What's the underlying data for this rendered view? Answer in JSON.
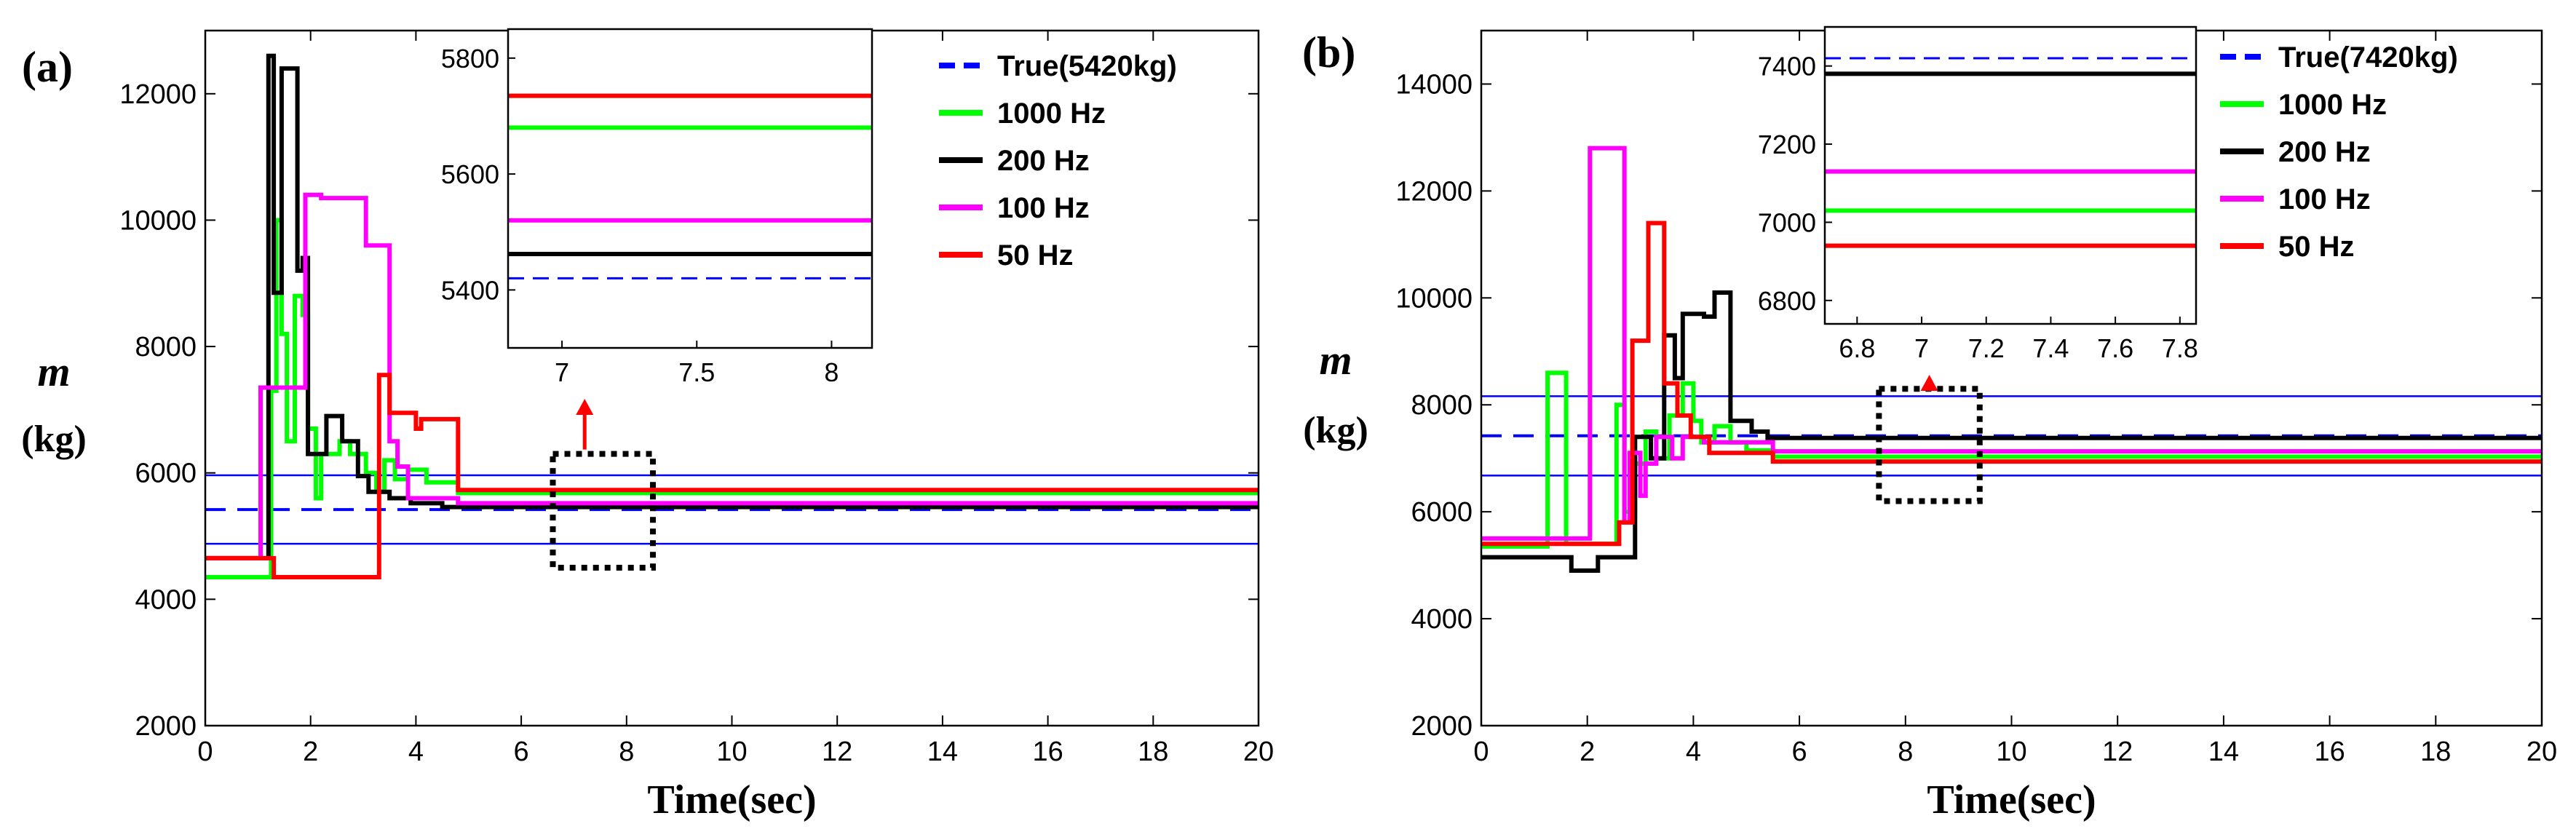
{
  "chart_data": [
    {
      "type": "line",
      "panel_label": "(a)",
      "title": "",
      "xlabel": "Time(sec)",
      "ylabel_symbol": "m",
      "ylabel_unit": "(kg)",
      "xlim": [
        0,
        20
      ],
      "ylim": [
        2000,
        13000
      ],
      "xticks": [
        0,
        2,
        4,
        6,
        8,
        10,
        12,
        14,
        16,
        18,
        20
      ],
      "yticks": [
        2000,
        4000,
        6000,
        8000,
        10000,
        12000
      ],
      "legend_position": "top-right",
      "reference_lines": {
        "true_value": 5420,
        "band_upper": 5962,
        "band_lower": 4878
      },
      "series": [
        {
          "name": "True(5420kg)",
          "color": "#0000ff",
          "dashed": true,
          "x": [
            0,
            20
          ],
          "y": [
            5420,
            5420
          ]
        },
        {
          "name": "1000 Hz",
          "color": "#00ff00",
          "x": [
            0,
            1.25,
            1.25,
            1.35,
            1.35,
            1.45,
            1.45,
            1.55,
            1.55,
            1.7,
            1.7,
            1.85,
            1.85,
            1.95,
            1.95,
            2.1,
            2.1,
            2.2,
            2.2,
            2.55,
            2.55,
            2.75,
            2.75,
            3.05,
            3.05,
            3.25,
            3.25,
            3.4,
            3.4,
            3.6,
            3.6,
            3.85,
            3.85,
            4.2,
            4.2,
            4.8,
            4.8,
            20
          ],
          "y": [
            4350,
            4350,
            7300,
            7300,
            10000,
            10000,
            8200,
            8200,
            6500,
            6500,
            8800,
            8800,
            8500,
            8500,
            6700,
            6700,
            5600,
            5600,
            6300,
            6300,
            6500,
            6500,
            6300,
            6300,
            6000,
            6000,
            5700,
            5700,
            6200,
            6200,
            5900,
            5900,
            6050,
            6050,
            5850,
            5850,
            5680,
            5680
          ]
        },
        {
          "name": "200 Hz",
          "color": "#000000",
          "x": [
            0,
            1.2,
            1.2,
            1.3,
            1.3,
            1.45,
            1.45,
            1.75,
            1.75,
            1.85,
            1.85,
            1.95,
            1.95,
            2.3,
            2.3,
            2.6,
            2.6,
            2.9,
            2.9,
            3.1,
            3.1,
            3.5,
            3.5,
            3.9,
            3.9,
            4.5,
            4.5,
            4.9,
            4.9,
            20
          ],
          "y": [
            4650,
            4650,
            12600,
            12600,
            8850,
            8850,
            12400,
            12400,
            9200,
            9200,
            9400,
            9400,
            6300,
            6300,
            6900,
            6900,
            6500,
            6500,
            5950,
            5950,
            5700,
            5700,
            5600,
            5600,
            5520,
            5520,
            5460,
            5460,
            5460,
            5460
          ]
        },
        {
          "name": "100 Hz",
          "color": "#ff00ff",
          "x": [
            0,
            1.05,
            1.05,
            1.9,
            1.9,
            2.2,
            2.2,
            2.55,
            2.55,
            3.05,
            3.05,
            3.5,
            3.5,
            3.65,
            3.65,
            3.85,
            3.85,
            4.8,
            4.8,
            20
          ],
          "y": [
            4650,
            4650,
            7350,
            7350,
            10400,
            10400,
            10350,
            10350,
            10350,
            10350,
            9600,
            9600,
            6500,
            6500,
            6100,
            6100,
            5600,
            5600,
            5520,
            5520
          ]
        },
        {
          "name": "50 Hz",
          "color": "#ff0000",
          "x": [
            0,
            1.3,
            1.3,
            3.3,
            3.3,
            3.5,
            3.5,
            4.0,
            4.0,
            4.1,
            4.1,
            4.8,
            4.8,
            20
          ],
          "y": [
            4650,
            4650,
            4350,
            4350,
            7550,
            7550,
            6950,
            6950,
            6700,
            6700,
            6850,
            6850,
            5730,
            5730
          ]
        }
      ],
      "inset": {
        "xlim": [
          6.8,
          8.15
        ],
        "ylim": [
          5300,
          5850
        ],
        "xticks": [
          7,
          7.5,
          8
        ],
        "yticks": [
          5400,
          5600,
          5800
        ],
        "xticklabels": [
          "7",
          "7.5",
          "8"
        ],
        "yticklabels": [
          "5400",
          "5600",
          "5800"
        ],
        "lines": [
          {
            "name": "50 Hz",
            "color": "#ff0000",
            "y": 5735
          },
          {
            "name": "1000 Hz",
            "color": "#00ff00",
            "y": 5680
          },
          {
            "name": "100 Hz",
            "color": "#ff00ff",
            "y": 5520
          },
          {
            "name": "200 Hz",
            "color": "#000000",
            "y": 5462
          },
          {
            "name": "True(5420kg)",
            "color": "#0000ff",
            "y": 5420,
            "dashed": true
          }
        ]
      },
      "zoom_box": {
        "x": [
          6.6,
          8.5
        ],
        "y": [
          4500,
          6300
        ]
      }
    },
    {
      "type": "line",
      "panel_label": "(b)",
      "title": "",
      "xlabel": "Time(sec)",
      "ylabel_symbol": "m",
      "ylabel_unit": "(kg)",
      "xlim": [
        0,
        20
      ],
      "ylim": [
        2000,
        15000
      ],
      "xticks": [
        0,
        2,
        4,
        6,
        8,
        10,
        12,
        14,
        16,
        18,
        20
      ],
      "yticks": [
        2000,
        4000,
        6000,
        8000,
        10000,
        12000,
        14000
      ],
      "legend_position": "top-right",
      "reference_lines": {
        "true_value": 7420,
        "band_upper": 8162,
        "band_lower": 6678
      },
      "series": [
        {
          "name": "True(7420kg)",
          "color": "#0000ff",
          "dashed": true,
          "x": [
            0,
            20
          ],
          "y": [
            7420,
            7420
          ]
        },
        {
          "name": "1000 Hz",
          "color": "#00ff00",
          "x": [
            0,
            1.25,
            1.25,
            1.6,
            1.6,
            2.55,
            2.55,
            2.7,
            2.7,
            2.9,
            2.9,
            3.1,
            3.1,
            3.3,
            3.3,
            3.55,
            3.55,
            3.8,
            3.8,
            4.0,
            4.0,
            4.15,
            4.15,
            4.4,
            4.4,
            4.7,
            4.7,
            5.0,
            5.0,
            5.5,
            5.5,
            20
          ],
          "y": [
            5350,
            5350,
            8600,
            8600,
            5400,
            5400,
            8000,
            8000,
            6000,
            6000,
            6900,
            6900,
            7500,
            7500,
            7000,
            7000,
            7800,
            7800,
            8400,
            8400,
            7700,
            7700,
            7300,
            7300,
            7600,
            7600,
            7300,
            7300,
            7150,
            7150,
            7030,
            7030
          ]
        },
        {
          "name": "200 Hz",
          "color": "#000000",
          "x": [
            0,
            1.7,
            1.7,
            2.2,
            2.2,
            2.9,
            2.9,
            3.2,
            3.2,
            3.45,
            3.45,
            3.65,
            3.65,
            3.8,
            3.8,
            4.2,
            4.2,
            4.4,
            4.4,
            4.7,
            4.7,
            5.1,
            5.1,
            5.4,
            5.4,
            20
          ],
          "y": [
            5150,
            5150,
            4900,
            4900,
            5150,
            5150,
            7400,
            7400,
            7000,
            7000,
            9300,
            9300,
            8500,
            8500,
            9700,
            9700,
            9650,
            9650,
            10100,
            10100,
            7700,
            7700,
            7500,
            7500,
            7380,
            7380
          ]
        },
        {
          "name": "100 Hz",
          "color": "#ff00ff",
          "x": [
            0,
            2.05,
            2.05,
            2.7,
            2.7,
            2.8,
            2.8,
            3.0,
            3.0,
            3.1,
            3.1,
            3.3,
            3.3,
            3.6,
            3.6,
            3.8,
            3.8,
            4.2,
            4.2,
            5.5,
            5.5,
            20
          ],
          "y": [
            5500,
            5500,
            12800,
            12800,
            5800,
            5800,
            7100,
            7100,
            6300,
            6300,
            6900,
            6900,
            7400,
            7400,
            7000,
            7000,
            7400,
            7400,
            7300,
            7300,
            7130,
            7130
          ]
        },
        {
          "name": "50 Hz",
          "color": "#ff0000",
          "x": [
            0,
            2.6,
            2.6,
            2.85,
            2.85,
            3.15,
            3.15,
            3.45,
            3.45,
            3.7,
            3.7,
            3.95,
            3.95,
            4.3,
            4.3,
            5.5,
            5.5,
            20
          ],
          "y": [
            5400,
            5400,
            5800,
            5800,
            9200,
            9200,
            11400,
            11400,
            8400,
            8400,
            7800,
            7800,
            7400,
            7400,
            7100,
            7100,
            6940,
            6940
          ]
        }
      ],
      "inset": {
        "xlim": [
          6.7,
          7.85
        ],
        "ylim": [
          6740,
          7500
        ],
        "xticks": [
          6.8,
          7,
          7.2,
          7.4,
          7.6,
          7.8
        ],
        "yticks": [
          6800,
          7000,
          7200,
          7400
        ],
        "xticklabels": [
          "6.8",
          "7",
          "7.2",
          "7.4",
          "7.6",
          "7.8"
        ],
        "yticklabels": [
          "6800",
          "7000",
          "7200",
          "7400"
        ],
        "lines": [
          {
            "name": "True(7420kg)",
            "color": "#0000ff",
            "y": 7420,
            "dashed": true
          },
          {
            "name": "200 Hz",
            "color": "#000000",
            "y": 7380
          },
          {
            "name": "100 Hz",
            "color": "#ff00ff",
            "y": 7130
          },
          {
            "name": "1000 Hz",
            "color": "#00ff00",
            "y": 7030
          },
          {
            "name": "50 Hz",
            "color": "#ff0000",
            "y": 6940
          }
        ]
      },
      "zoom_box": {
        "x": [
          7.5,
          9.4
        ],
        "y": [
          6200,
          8300
        ]
      }
    }
  ]
}
